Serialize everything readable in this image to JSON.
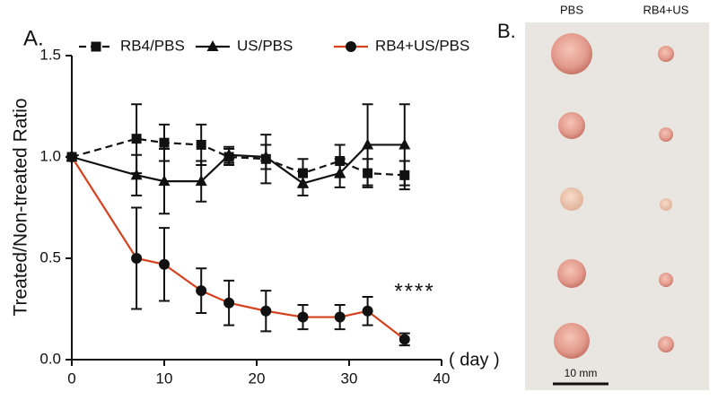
{
  "chart_data": {
    "type": "line",
    "panel_label": "A.",
    "x_label": "( day )",
    "y_label": "Treated/Non-treated Ratio",
    "x": [
      0,
      7,
      10,
      14,
      17,
      21,
      25,
      29,
      32,
      36
    ],
    "series": [
      {
        "name": "RB4/PBS",
        "color": "#111111",
        "line_style": "dashed",
        "marker": "square",
        "values": [
          1.0,
          1.09,
          1.07,
          1.06,
          1.0,
          0.99,
          0.92,
          0.98,
          0.92,
          0.91
        ],
        "errors": [
          0,
          0.17,
          0.09,
          0.1,
          0.04,
          0.12,
          0.07,
          0.08,
          0.07,
          0.07
        ]
      },
      {
        "name": "US/PBS",
        "color": "#111111",
        "line_style": "solid",
        "marker": "triangle",
        "values": [
          1.0,
          0.91,
          0.88,
          0.88,
          1.01,
          1.0,
          0.87,
          0.92,
          1.06,
          1.06
        ],
        "errors": [
          0,
          0.1,
          0.16,
          0.1,
          0.04,
          0.06,
          0.06,
          0.07,
          0.2,
          0.2
        ]
      },
      {
        "name": "RB4+US/PBS",
        "color": "#d4421e",
        "line_style": "solid",
        "marker": "circle",
        "values": [
          1.0,
          0.5,
          0.47,
          0.34,
          0.28,
          0.24,
          0.21,
          0.21,
          0.24,
          0.1
        ],
        "errors": [
          0,
          0.25,
          0.18,
          0.11,
          0.11,
          0.1,
          0.06,
          0.06,
          0.07,
          0.03
        ]
      }
    ],
    "annotation": "****",
    "xlim": [
      0,
      40
    ],
    "xticks": [
      0,
      10,
      20,
      30,
      40
    ],
    "ylim": [
      0,
      1.5
    ],
    "yticks": [
      {
        "value": 0,
        "label": "0.0"
      },
      0.5,
      {
        "value": 1,
        "label": "1.0"
      },
      1.5
    ],
    "legend": "top"
  },
  "photo": {
    "panel_label": "B.",
    "columns": [
      "PBS",
      "RB4+US"
    ],
    "scale_bar": "10 mm"
  }
}
